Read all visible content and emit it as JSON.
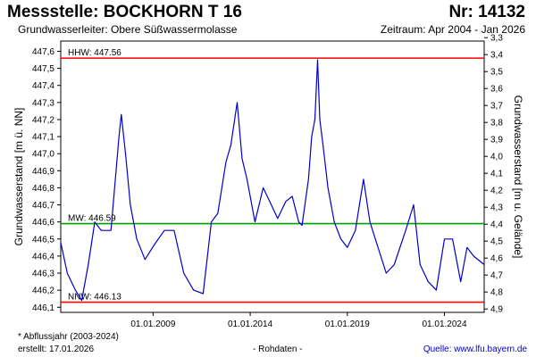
{
  "header": {
    "title": "Messstelle: BOCKHORN T 16",
    "number": "Nr: 14132",
    "aquifer": "Grundwasserleiter:   Obere Süßwassermolasse",
    "period": "Zeitraum: Apr 2004 - Jan 2026"
  },
  "footer": {
    "footnote": "* Abflussjahr (2003-2024)",
    "created": "erstellt:  17.01.2026",
    "rawdata": "- Rohdaten -",
    "source": "Quelle: www.lfu.bayern.de"
  },
  "colors": {
    "series": "#0000cc",
    "extreme_lines": "#ff0000",
    "mean_line": "#00a000",
    "frame": "#000000"
  },
  "chart_data": {
    "type": "line",
    "ylabel": "Grundwasserstand [m ü. NN]",
    "ylabel_right": "Grundwasserstand [m u. Gelände]",
    "ylim": [
      446.07,
      447.66
    ],
    "ylim_right": [
      4.92,
      3.32
    ],
    "xlim": [
      "2004-04-01",
      "2026-01-17"
    ],
    "yticks": [
      "446,1",
      "446,2",
      "446,3",
      "446,4",
      "446,5",
      "446,6",
      "446,7",
      "446,8",
      "446,9",
      "447,0",
      "447,1",
      "447,2",
      "447,3",
      "447,4",
      "447,5",
      "447,6"
    ],
    "yticks_right": [
      "3,3",
      "3,4",
      "3,5",
      "3,6",
      "3,7",
      "3,8",
      "3,9",
      "4,0",
      "4,1",
      "4,2",
      "4,3",
      "4,4",
      "4,5",
      "4,6",
      "4,7",
      "4,8",
      "4,9"
    ],
    "xticks": [
      "01.01.2009",
      "01.01.2014",
      "01.01.2019",
      "01.01.2024"
    ],
    "grid": false,
    "reference_lines": [
      {
        "label": "HHW: 447.56",
        "value": 447.56,
        "color": "#ff0000"
      },
      {
        "label": "MW: 446.59",
        "value": 446.59,
        "color": "#00a000"
      },
      {
        "label": "NNW: 446.13",
        "value": 446.13,
        "color": "#ff0000"
      }
    ],
    "series": [
      {
        "points": [
          [
            "2004-04-01",
            446.48
          ],
          [
            "2004-08-01",
            446.3
          ],
          [
            "2005-01-01",
            446.2
          ],
          [
            "2005-05-01",
            446.14
          ],
          [
            "2005-09-01",
            446.35
          ],
          [
            "2006-01-01",
            446.6
          ],
          [
            "2006-05-01",
            446.55
          ],
          [
            "2006-11-01",
            446.55
          ],
          [
            "2007-04-01",
            447.1
          ],
          [
            "2007-05-15",
            447.23
          ],
          [
            "2007-08-01",
            447.0
          ],
          [
            "2007-11-01",
            446.7
          ],
          [
            "2008-03-01",
            446.5
          ],
          [
            "2008-08-01",
            446.38
          ],
          [
            "2009-02-01",
            446.47
          ],
          [
            "2009-08-01",
            446.55
          ],
          [
            "2010-02-01",
            446.55
          ],
          [
            "2010-08-01",
            446.3
          ],
          [
            "2011-02-01",
            446.2
          ],
          [
            "2011-08-01",
            446.18
          ],
          [
            "2012-01-01",
            446.6
          ],
          [
            "2012-05-01",
            446.65
          ],
          [
            "2012-10-01",
            446.95
          ],
          [
            "2013-01-01",
            447.05
          ],
          [
            "2013-05-01",
            447.3
          ],
          [
            "2013-08-01",
            446.97
          ],
          [
            "2013-11-01",
            446.85
          ],
          [
            "2014-04-01",
            446.6
          ],
          [
            "2014-09-01",
            446.8
          ],
          [
            "2015-02-01",
            446.7
          ],
          [
            "2015-06-01",
            446.62
          ],
          [
            "2015-11-01",
            446.72
          ],
          [
            "2016-03-01",
            446.75
          ],
          [
            "2016-07-01",
            446.6
          ],
          [
            "2016-09-01",
            446.58
          ],
          [
            "2017-01-01",
            446.85
          ],
          [
            "2017-03-01",
            447.1
          ],
          [
            "2017-05-01",
            447.2
          ],
          [
            "2017-06-20",
            447.55
          ],
          [
            "2017-08-01",
            447.2
          ],
          [
            "2017-10-01",
            447.05
          ],
          [
            "2018-01-01",
            446.8
          ],
          [
            "2018-05-01",
            446.6
          ],
          [
            "2018-09-01",
            446.5
          ],
          [
            "2019-01-01",
            446.45
          ],
          [
            "2019-06-01",
            446.55
          ],
          [
            "2019-11-01",
            446.85
          ],
          [
            "2020-03-01",
            446.6
          ],
          [
            "2020-08-01",
            446.45
          ],
          [
            "2021-01-01",
            446.3
          ],
          [
            "2021-06-01",
            446.35
          ],
          [
            "2022-01-01",
            446.55
          ],
          [
            "2022-06-01",
            446.7
          ],
          [
            "2022-10-01",
            446.35
          ],
          [
            "2023-03-01",
            446.25
          ],
          [
            "2023-08-01",
            446.2
          ],
          [
            "2024-01-01",
            446.5
          ],
          [
            "2024-06-01",
            446.5
          ],
          [
            "2024-11-01",
            446.25
          ],
          [
            "2025-03-01",
            446.45
          ],
          [
            "2025-07-01",
            446.4
          ],
          [
            "2026-01-17",
            446.35
          ]
        ]
      }
    ]
  }
}
